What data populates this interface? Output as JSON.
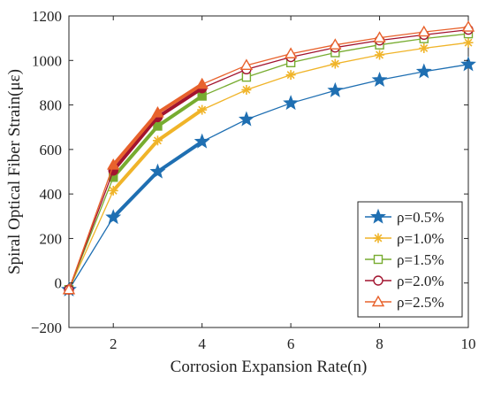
{
  "chart_data": {
    "type": "line",
    "xlabel": "Corrosion Expansion Rate(n)",
    "ylabel": "Spiral Optical Fiber Strain(με)",
    "xlim": [
      1,
      10
    ],
    "ylim": [
      -200,
      1200
    ],
    "xticks": [
      2,
      4,
      6,
      8,
      10
    ],
    "yticks": [
      -200,
      0,
      200,
      400,
      600,
      800,
      1000,
      1200
    ],
    "x": [
      1,
      2,
      3,
      4,
      5,
      6,
      7,
      8,
      9,
      10
    ],
    "legend_position": "lower-right",
    "grid": false,
    "series": [
      {
        "name": "ρ=0.5%",
        "color": "#1f6fb2",
        "marker": "star",
        "values": [
          -30,
          295,
          500,
          635,
          735,
          808,
          865,
          912,
          950,
          982
        ]
      },
      {
        "name": "ρ=1.0%",
        "color": "#f0b429",
        "marker": "asterisk",
        "values": [
          -30,
          415,
          640,
          778,
          868,
          935,
          985,
          1025,
          1055,
          1080
        ]
      },
      {
        "name": "ρ=1.5%",
        "color": "#77ac30",
        "marker": "square",
        "values": [
          -30,
          475,
          705,
          840,
          925,
          990,
          1035,
          1070,
          1098,
          1120
        ]
      },
      {
        "name": "ρ=2.0%",
        "color": "#a2142f",
        "marker": "circle",
        "values": [
          -30,
          505,
          745,
          875,
          960,
          1015,
          1058,
          1090,
          1115,
          1138
        ]
      },
      {
        "name": "ρ=2.5%",
        "color": "#e8622c",
        "marker": "triangle",
        "values": [
          -30,
          530,
          765,
          893,
          978,
          1030,
          1070,
          1102,
          1128,
          1150
        ]
      }
    ]
  }
}
